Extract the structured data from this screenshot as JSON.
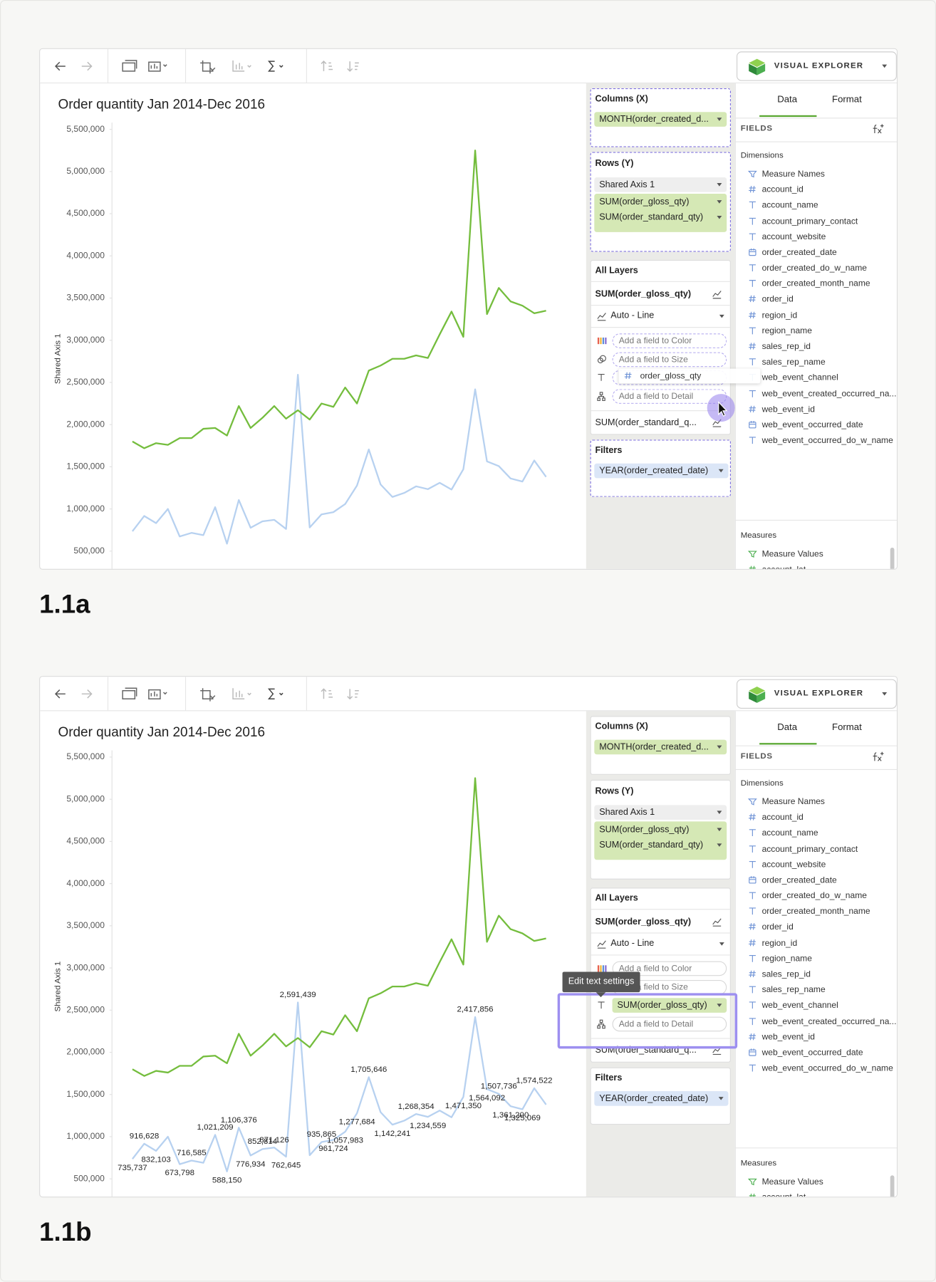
{
  "panels": [
    {
      "caption": "1.1a",
      "app_button": "VISUAL EXPLORER",
      "chart": {
        "type": "line",
        "title": "Order quantity Jan 2014-Dec 2016",
        "y_label": "Shared Axis 1",
        "ylim": [
          280000,
          5580000
        ],
        "yticks": [
          {
            "value": 500000,
            "label": "500,000"
          },
          {
            "value": 1000000,
            "label": "1,000,000"
          },
          {
            "value": 1500000,
            "label": "1,500,000"
          },
          {
            "value": 2000000,
            "label": "2,000,000"
          },
          {
            "value": 2500000,
            "label": "2,500,000"
          },
          {
            "value": 3000000,
            "label": "3,000,000"
          },
          {
            "value": 3500000,
            "label": "3,500,000"
          },
          {
            "value": 4000000,
            "label": "4,000,000"
          },
          {
            "value": 4500000,
            "label": "4,500,000"
          },
          {
            "value": 5000000,
            "label": "5,000,000"
          },
          {
            "value": 5500000,
            "label": "5,500,000"
          }
        ],
        "series": [
          {
            "color": "#b7d1f0",
            "values": [
              735737,
              916628,
              832103,
              1000000,
              673798,
              716585,
              690000,
              1021209,
              588150,
              1106376,
              776934,
              852814,
              871126,
              762645,
              2591439,
              780000,
              935865,
              961724,
              1057983,
              1277684,
              1705646,
              1290000,
              1142241,
              1190000,
              1268354,
              1234559,
              1310000,
              1230000,
              1471350,
              2417856,
              1564092,
              1507736,
              1361200,
              1325069,
              1574522,
              1380000
            ]
          },
          {
            "color": "#74bd3d",
            "values": [
              1800000,
              1720000,
              1780000,
              1760000,
              1840000,
              1840000,
              1950000,
              1960000,
              1870000,
              2220000,
              1960000,
              2080000,
              2220000,
              2070000,
              2170000,
              2060000,
              2250000,
              2210000,
              2440000,
              2250000,
              2640000,
              2700000,
              2780000,
              2780000,
              2820000,
              2790000,
              3070000,
              3340000,
              3040000,
              5250000,
              3310000,
              3620000,
              3460000,
              3410000,
              3320000,
              3350000
            ]
          }
        ]
      },
      "shelves": {
        "drop_zones_active": true,
        "columns": {
          "title": "Columns (X)",
          "pill": "MONTH(order_created_d..."
        },
        "rows": {
          "title": "Rows (Y)",
          "axis": "Shared Axis 1",
          "pills": [
            "SUM(order_gloss_qty)",
            "SUM(order_standard_qty)"
          ]
        },
        "layers": {
          "title": "All Layers",
          "layer": "SUM(order_gloss_qty)",
          "mark_type": "Auto - Line",
          "encodings": [
            {
              "kind": "color",
              "placeholder": "Add a field to Color"
            },
            {
              "kind": "size",
              "placeholder": "Add a field to Size"
            },
            {
              "kind": "text"
            },
            {
              "kind": "detail",
              "placeholder": "Add a field to Detail"
            }
          ],
          "next_layer": "SUM(order_standard_q..."
        },
        "filters": {
          "title": "Filters",
          "pill": "YEAR(order_created_date)"
        }
      },
      "data_pane": {
        "tabs": [
          "Data",
          "Format"
        ],
        "fields": "FIELDS",
        "dimensions_title": "Dimensions",
        "dimensions": [
          {
            "label": "Measure Names",
            "icon": "names"
          },
          {
            "label": "account_id",
            "icon": "number"
          },
          {
            "label": "account_name",
            "icon": "text"
          },
          {
            "label": "account_primary_contact",
            "icon": "text"
          },
          {
            "label": "account_website",
            "icon": "text"
          },
          {
            "label": "order_created_date",
            "icon": "date"
          },
          {
            "label": "order_created_do_w_name",
            "icon": "text"
          },
          {
            "label": "order_created_month_name",
            "icon": "text"
          },
          {
            "label": "order_id",
            "icon": "number"
          },
          {
            "label": "region_id",
            "icon": "number"
          },
          {
            "label": "region_name",
            "icon": "text"
          },
          {
            "label": "sales_rep_id",
            "icon": "number"
          },
          {
            "label": "sales_rep_name",
            "icon": "text"
          },
          {
            "label": "web_event_channel",
            "icon": "text"
          },
          {
            "label": "web_event_created_occurred_na...",
            "icon": "text"
          },
          {
            "label": "web_event_id",
            "icon": "number"
          },
          {
            "label": "web_event_occurred_date",
            "icon": "date"
          },
          {
            "label": "web_event_occurred_do_w_name",
            "icon": "text"
          }
        ],
        "measures_title": "Measures",
        "measures": [
          {
            "label": "Measure Values",
            "icon": "names"
          },
          {
            "label": "account_lat",
            "icon": "number"
          }
        ]
      },
      "overlay": {
        "drag_chip": "order_gloss_qty"
      }
    },
    {
      "caption": "1.1b",
      "app_button": "VISUAL EXPLORER",
      "chart": {
        "type": "line",
        "title": "Order quantity Jan 2014-Dec 2016",
        "y_label": "Shared Axis 1",
        "ylim": [
          280000,
          5580000
        ],
        "yticks": [
          {
            "value": 500000,
            "label": "500,000"
          },
          {
            "value": 1000000,
            "label": "1,000,000"
          },
          {
            "value": 1500000,
            "label": "1,500,000"
          },
          {
            "value": 2000000,
            "label": "2,000,000"
          },
          {
            "value": 2500000,
            "label": "2,500,000"
          },
          {
            "value": 3000000,
            "label": "3,000,000"
          },
          {
            "value": 3500000,
            "label": "3,500,000"
          },
          {
            "value": 4000000,
            "label": "4,000,000"
          },
          {
            "value": 4500000,
            "label": "4,500,000"
          },
          {
            "value": 5000000,
            "label": "5,000,000"
          },
          {
            "value": 5500000,
            "label": "5,500,000"
          }
        ],
        "series": [
          {
            "color": "#b7d1f0",
            "values": [
              735737,
              916628,
              832103,
              1000000,
              673798,
              716585,
              690000,
              1021209,
              588150,
              1106376,
              776934,
              852814,
              871126,
              762645,
              2591439,
              780000,
              935865,
              961724,
              1057983,
              1277684,
              1705646,
              1290000,
              1142241,
              1190000,
              1268354,
              1234559,
              1310000,
              1230000,
              1471350,
              2417856,
              1564092,
              1507736,
              1361200,
              1325069,
              1574522,
              1380000
            ],
            "value_labels": [
              "735,737",
              "916,628",
              "832,103",
              null,
              "673,798",
              "716,585",
              null,
              "1,021,209",
              "588,150",
              "1,106,376",
              "776,934",
              "852,814",
              "871,126",
              "762,645",
              "2,591,439",
              null,
              "935,865",
              "961,724",
              "1,057,983",
              "1,277,684",
              "1,705,646",
              null,
              "1,142,241",
              null,
              "1,268,354",
              "1,234,559",
              null,
              null,
              "1,471,350",
              "2,417,856",
              "1,564,092",
              "1,507,736",
              "1,361,200",
              "1,325,069",
              "1,574,522",
              null
            ]
          },
          {
            "color": "#74bd3d",
            "values": [
              1800000,
              1720000,
              1780000,
              1760000,
              1840000,
              1840000,
              1950000,
              1960000,
              1870000,
              2220000,
              1960000,
              2080000,
              2220000,
              2070000,
              2170000,
              2060000,
              2250000,
              2210000,
              2440000,
              2250000,
              2640000,
              2700000,
              2780000,
              2780000,
              2820000,
              2790000,
              3070000,
              3340000,
              3040000,
              5250000,
              3310000,
              3620000,
              3460000,
              3410000,
              3320000,
              3350000
            ]
          }
        ]
      },
      "shelves": {
        "drop_zones_active": false,
        "columns": {
          "title": "Columns (X)",
          "pill": "MONTH(order_created_d..."
        },
        "rows": {
          "title": "Rows (Y)",
          "axis": "Shared Axis 1",
          "pills": [
            "SUM(order_gloss_qty)",
            "SUM(order_standard_qty)"
          ]
        },
        "layers": {
          "title": "All Layers",
          "layer": "SUM(order_gloss_qty)",
          "mark_type": "Auto - Line",
          "encodings": [
            {
              "kind": "color",
              "placeholder": "Add a field to Color"
            },
            {
              "kind": "size",
              "placeholder": "Add a field to Size"
            },
            {
              "kind": "text",
              "field": "SUM(order_gloss_qty)"
            },
            {
              "kind": "detail",
              "placeholder": "Add a field to Detail"
            }
          ],
          "next_layer": "SUM(order_standard_q..."
        },
        "filters": {
          "title": "Filters",
          "pill": "YEAR(order_created_date)"
        }
      },
      "data_pane": {
        "tabs": [
          "Data",
          "Format"
        ],
        "fields": "FIELDS",
        "dimensions_title": "Dimensions",
        "dimensions": [
          {
            "label": "Measure Names",
            "icon": "names"
          },
          {
            "label": "account_id",
            "icon": "number"
          },
          {
            "label": "account_name",
            "icon": "text"
          },
          {
            "label": "account_primary_contact",
            "icon": "text"
          },
          {
            "label": "account_website",
            "icon": "text"
          },
          {
            "label": "order_created_date",
            "icon": "date"
          },
          {
            "label": "order_created_do_w_name",
            "icon": "text"
          },
          {
            "label": "order_created_month_name",
            "icon": "text"
          },
          {
            "label": "order_id",
            "icon": "number"
          },
          {
            "label": "region_id",
            "icon": "number"
          },
          {
            "label": "region_name",
            "icon": "text"
          },
          {
            "label": "sales_rep_id",
            "icon": "number"
          },
          {
            "label": "sales_rep_name",
            "icon": "text"
          },
          {
            "label": "web_event_channel",
            "icon": "text"
          },
          {
            "label": "web_event_created_occurred_na...",
            "icon": "text"
          },
          {
            "label": "web_event_id",
            "icon": "number"
          },
          {
            "label": "web_event_occurred_date",
            "icon": "date"
          },
          {
            "label": "web_event_occurred_do_w_name",
            "icon": "text"
          }
        ],
        "measures_title": "Measures",
        "measures": [
          {
            "label": "Measure Values",
            "icon": "names"
          },
          {
            "label": "account_lat",
            "icon": "number"
          }
        ]
      },
      "overlay": {
        "tooltip": "Edit text settings"
      }
    }
  ]
}
